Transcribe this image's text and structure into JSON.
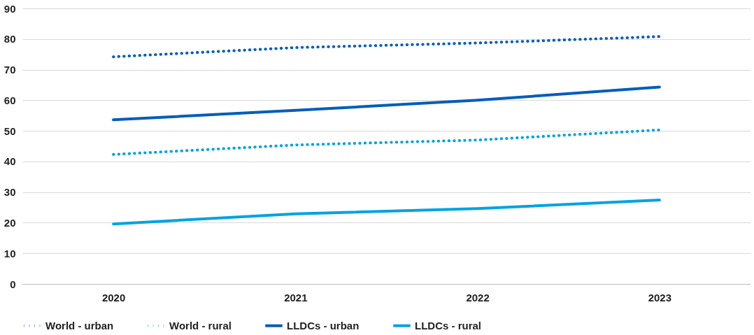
{
  "chart_data": {
    "type": "line",
    "categories": [
      "2020",
      "2021",
      "2022",
      "2023"
    ],
    "ylim": [
      0,
      90
    ],
    "yticks": [
      0,
      10,
      20,
      30,
      40,
      50,
      60,
      70,
      80,
      90
    ],
    "grid": "y",
    "legend": "bottom",
    "series": [
      {
        "name": "World - urban",
        "color": "#005eb8",
        "line_style": "dotted",
        "values": [
          74.2,
          77.2,
          78.7,
          80.8
        ]
      },
      {
        "name": "World - rural",
        "color": "#00a3e0",
        "line_style": "dotted",
        "values": [
          42.3,
          45.4,
          47.0,
          50.3
        ]
      },
      {
        "name": "LLDCs - urban",
        "color": "#005eb8",
        "line_style": "solid",
        "values": [
          53.6,
          56.7,
          60.0,
          64.3
        ]
      },
      {
        "name": "LLDCs - rural",
        "color": "#00a3e0",
        "line_style": "solid",
        "values": [
          19.6,
          22.9,
          24.6,
          27.4
        ]
      }
    ]
  }
}
